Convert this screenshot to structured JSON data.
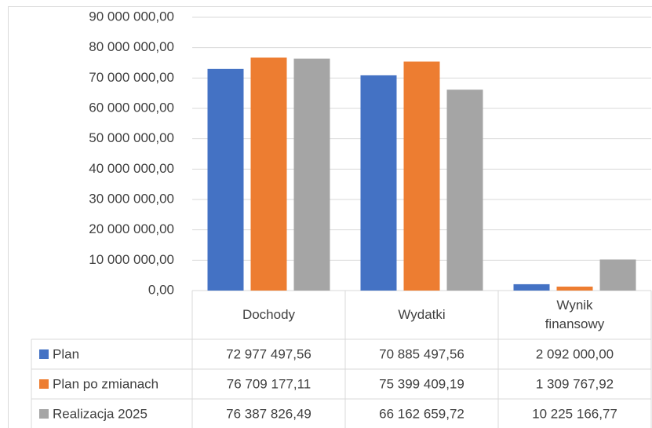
{
  "chart_data": {
    "type": "bar",
    "categories": [
      "Dochody",
      "Wydatki",
      "Wynik finansowy"
    ],
    "series": [
      {
        "name": "Plan",
        "color": "#4472c4",
        "values": [
          72977497.56,
          70885497.56,
          2092000.0
        ],
        "value_labels": [
          "72 977 497,56",
          "70 885 497,56",
          "2 092 000,00"
        ]
      },
      {
        "name": "Plan po zmianach",
        "color": "#ed7d31",
        "values": [
          76709177.11,
          75399409.19,
          1309767.92
        ],
        "value_labels": [
          "76 709 177,11",
          "75 399 409,19",
          "1 309 767,92"
        ]
      },
      {
        "name": "Realizacja 2025",
        "color": "#a5a5a5",
        "values": [
          76387826.49,
          66162659.72,
          10225166.77
        ],
        "value_labels": [
          "76 387 826,49",
          "66 162 659,72",
          "10 225 166,77"
        ]
      }
    ],
    "ylim": [
      0,
      90000000
    ],
    "yticks": [
      {
        "value": 0,
        "label": "0,00"
      },
      {
        "value": 10000000,
        "label": "10 000 000,00"
      },
      {
        "value": 20000000,
        "label": "20 000 000,00"
      },
      {
        "value": 30000000,
        "label": "30 000 000,00"
      },
      {
        "value": 40000000,
        "label": "40 000 000,00"
      },
      {
        "value": 50000000,
        "label": "50 000 000,00"
      },
      {
        "value": 60000000,
        "label": "60 000 000,00"
      },
      {
        "value": 70000000,
        "label": "70 000 000,00"
      },
      {
        "value": 80000000,
        "label": "80 000 000,00"
      },
      {
        "value": 90000000,
        "label": "90 000 000,00"
      }
    ],
    "grid": true
  }
}
